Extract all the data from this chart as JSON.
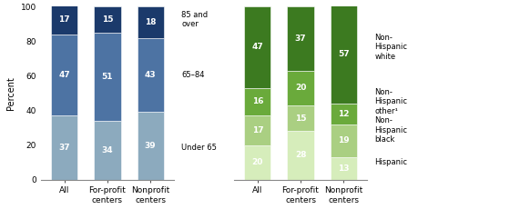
{
  "age_categories": [
    "All",
    "For-profit\ncenters",
    "Nonprofit\ncenters"
  ],
  "age_data_order": [
    "Under 65",
    "65-84",
    "85 and over"
  ],
  "age_data": {
    "Under 65": [
      37,
      34,
      39
    ],
    "65-84": [
      47,
      51,
      43
    ],
    "85 and over": [
      17,
      15,
      18
    ]
  },
  "age_colors": [
    "#8caabe",
    "#4d73a3",
    "#1b3a6b"
  ],
  "age_side_labels": [
    "Under 65",
    "65–84",
    "85 and\nover"
  ],
  "race_categories": [
    "All",
    "For-profit\ncenters",
    "Nonprofit\ncenters"
  ],
  "race_data_order": [
    "Hispanic",
    "Non-Hispanic black",
    "Non-Hispanic other",
    "Non-Hispanic white"
  ],
  "race_data": {
    "Hispanic": [
      20,
      28,
      13
    ],
    "Non-Hispanic black": [
      17,
      15,
      19
    ],
    "Non-Hispanic other": [
      16,
      20,
      12
    ],
    "Non-Hispanic white": [
      47,
      37,
      57
    ]
  },
  "race_colors": [
    "#d6edbb",
    "#aacf82",
    "#6aaa3b",
    "#3c7a20"
  ],
  "race_side_labels": [
    "Hispanic",
    "Non-\nHispanic\nblack",
    "Non-\nHispanic\nother¹",
    "Non-\nHispanic\nwhite"
  ],
  "ylabel": "Percent",
  "ylim": [
    0,
    100
  ],
  "yticks": [
    0,
    20,
    40,
    60,
    80,
    100
  ],
  "label_fontsize": 6.5,
  "tick_fontsize": 6.5,
  "side_label_fontsize": 6.0
}
